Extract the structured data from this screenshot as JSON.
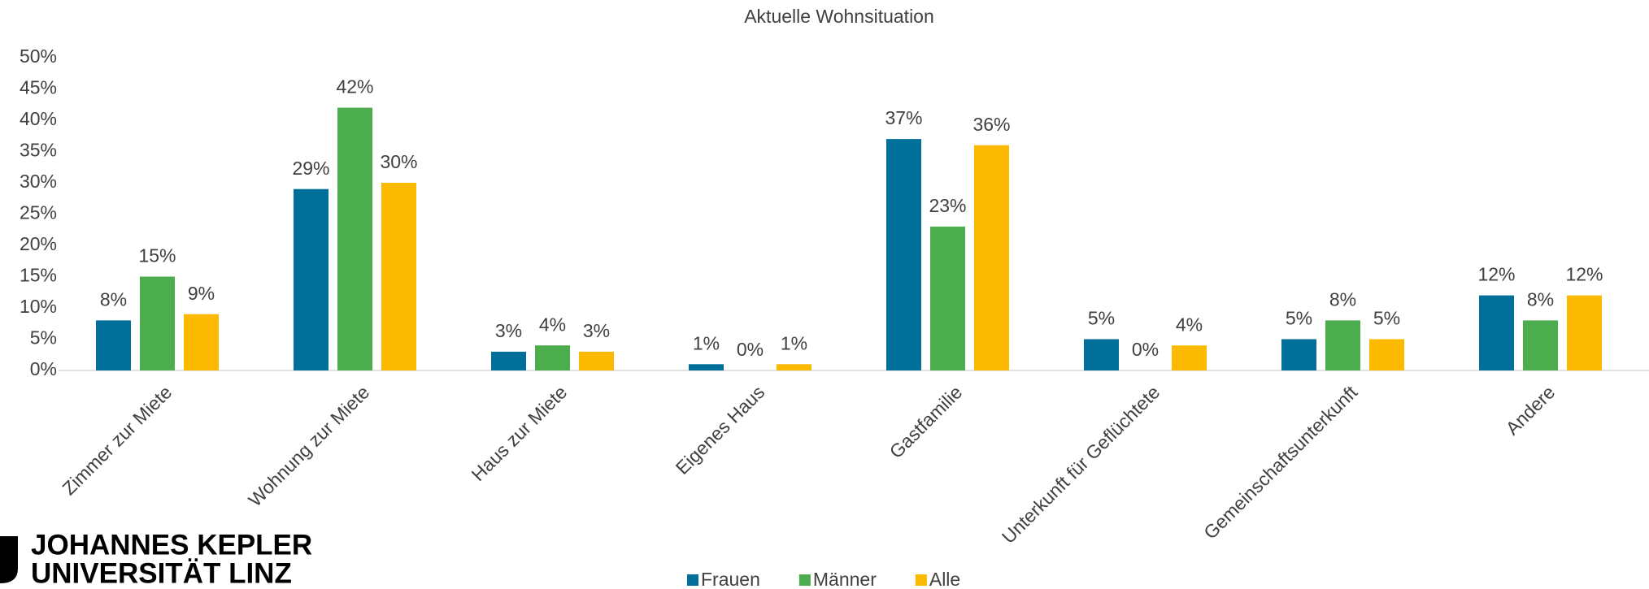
{
  "chart_data": {
    "type": "bar",
    "subtitle": "Aktuelle Wohnsituation",
    "categories": [
      "Zimmer zur Miete",
      "Wohnung zur Miete",
      "Haus zur Miete",
      "Eigenes Haus",
      "Gastfamilie",
      "Unterkunft für Geflüchtete",
      "Gemeinschaftsunterkunft",
      "Andere"
    ],
    "series": [
      {
        "name": "Frauen",
        "color": "#006f9a",
        "values": [
          8,
          29,
          3,
          1,
          37,
          5,
          5,
          12
        ],
        "value_labels": [
          "8%",
          "29%",
          "3%",
          "1%",
          "37%",
          "5%",
          "5%",
          "12%"
        ]
      },
      {
        "name": "Männer",
        "color": "#4cad4f",
        "values": [
          15,
          42,
          4,
          0,
          23,
          0,
          8,
          8
        ],
        "value_labels": [
          "15%",
          "42%",
          "4%",
          "0%",
          "23%",
          "0%",
          "8%",
          "8%"
        ]
      },
      {
        "name": "Alle",
        "color": "#fbb900",
        "values": [
          9,
          30,
          3,
          1,
          36,
          4,
          5,
          12
        ],
        "value_labels": [
          "9%",
          "30%",
          "3%",
          "1%",
          "36%",
          "4%",
          "5%",
          "12%"
        ]
      }
    ],
    "ylim": [
      0,
      50
    ],
    "yticks": [
      {
        "value": 0,
        "label": "0%"
      },
      {
        "value": 5,
        "label": "5%"
      },
      {
        "value": 10,
        "label": "10%"
      },
      {
        "value": 15,
        "label": "15%"
      },
      {
        "value": 20,
        "label": "20%"
      },
      {
        "value": 25,
        "label": "25%"
      },
      {
        "value": 30,
        "label": "30%"
      },
      {
        "value": 35,
        "label": "35%"
      },
      {
        "value": 40,
        "label": "40%"
      },
      {
        "value": 45,
        "label": "45%"
      },
      {
        "value": 50,
        "label": "50%"
      }
    ],
    "legend": "bottom"
  },
  "logo": {
    "lines": [
      "JOHANNES KEPLER",
      "UNIVERSITÄT LINZ"
    ]
  }
}
